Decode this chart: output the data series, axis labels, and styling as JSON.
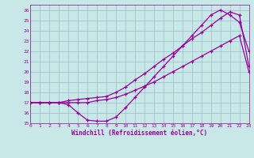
{
  "xlabel": "Windchill (Refroidissement éolien,°C)",
  "bg_color": "#c8e8e8",
  "grid_color": "#99bbcc",
  "line_color": "#990099",
  "xlim": [
    0,
    23
  ],
  "ylim": [
    15,
    26.5
  ],
  "yticks": [
    15,
    16,
    17,
    18,
    19,
    20,
    21,
    22,
    23,
    24,
    25,
    26
  ],
  "xticks": [
    0,
    1,
    2,
    3,
    4,
    5,
    6,
    7,
    8,
    9,
    10,
    11,
    12,
    13,
    14,
    15,
    16,
    17,
    18,
    19,
    20,
    21,
    22,
    23
  ],
  "line1_x": [
    0,
    1,
    2,
    3,
    4,
    5,
    6,
    7,
    8,
    9,
    10,
    11,
    12,
    13,
    14,
    15,
    16,
    17,
    18,
    19,
    20,
    21,
    22,
    23
  ],
  "line1_y": [
    17.0,
    17.0,
    17.0,
    17.0,
    16.8,
    16.0,
    15.3,
    15.2,
    15.2,
    15.6,
    16.5,
    17.5,
    18.5,
    19.5,
    20.5,
    21.5,
    22.5,
    23.5,
    24.5,
    25.5,
    26.0,
    25.5,
    24.8,
    22.0
  ],
  "line2_x": [
    0,
    1,
    2,
    3,
    4,
    5,
    6,
    7,
    8,
    9,
    10,
    11,
    12,
    13,
    14,
    15,
    16,
    17,
    18,
    19,
    20,
    21,
    22,
    23
  ],
  "line2_y": [
    17.0,
    17.0,
    17.0,
    17.0,
    17.2,
    17.3,
    17.4,
    17.5,
    17.6,
    18.0,
    18.5,
    19.2,
    19.8,
    20.5,
    21.2,
    21.8,
    22.5,
    23.2,
    23.8,
    24.5,
    25.2,
    25.8,
    25.5,
    20.5
  ],
  "line3_x": [
    0,
    1,
    2,
    3,
    4,
    5,
    6,
    7,
    8,
    9,
    10,
    11,
    12,
    13,
    14,
    15,
    16,
    17,
    18,
    19,
    20,
    21,
    22,
    23
  ],
  "line3_y": [
    17.0,
    17.0,
    17.0,
    17.0,
    17.0,
    17.0,
    17.0,
    17.2,
    17.3,
    17.5,
    17.8,
    18.2,
    18.6,
    19.0,
    19.5,
    20.0,
    20.5,
    21.0,
    21.5,
    22.0,
    22.5,
    23.0,
    23.5,
    20.0
  ]
}
